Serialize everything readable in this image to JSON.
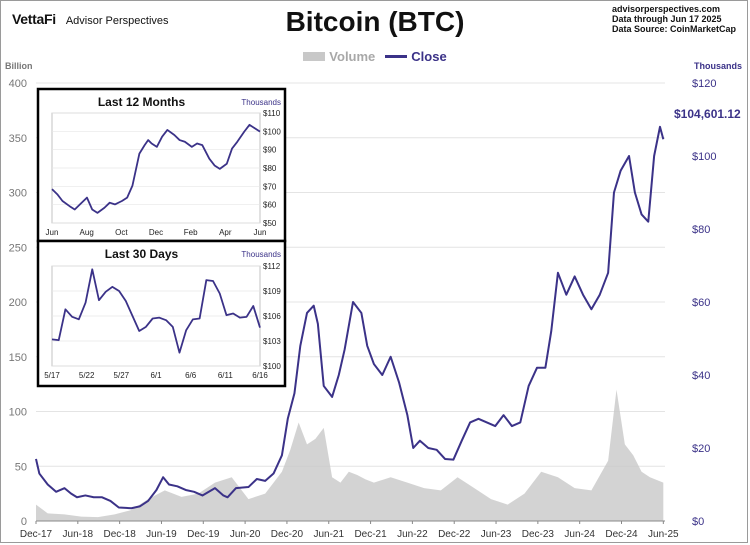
{
  "header": {
    "brand": "VettaFi",
    "brand_sub": "Advisor Perspectives",
    "title": "Bitcoin (BTC)",
    "source_lines": [
      "advisorperspectives.com",
      "Data through Jun 17 2025",
      "Data Source: CoinMarketCap"
    ]
  },
  "legend": {
    "volume_label": "Volume",
    "close_label": "Close"
  },
  "colors": {
    "close": "#3b3288",
    "volume": "#c8c8c8",
    "axis_left": "#777777",
    "grid": "#e4e4e4"
  },
  "chart_data": [
    {
      "type": "line",
      "title": "Bitcoin (BTC)",
      "left_axis_title": "Billion",
      "right_axis_title": "Thousands",
      "left_ticks": [
        0,
        50,
        100,
        150,
        200,
        250,
        300,
        350,
        400
      ],
      "right_ticks": [
        "$0",
        "$20",
        "$40",
        "$60",
        "$80",
        "$100",
        "$120"
      ],
      "ylim_left": [
        0,
        400
      ],
      "ylim_right": [
        0,
        120
      ],
      "x_ticks": [
        "Dec-17",
        "Jun-18",
        "Dec-18",
        "Jun-19",
        "Dec-19",
        "Jun-20",
        "Dec-20",
        "Jun-21",
        "Dec-21",
        "Jun-22",
        "Dec-22",
        "Jun-23",
        "Dec-23",
        "Jun-24",
        "Dec-24",
        "Jun-25"
      ],
      "grid": "horizontal",
      "last_value_label": "$104,601.12",
      "series": [
        {
          "name": "Close",
          "x": [
            2017.96,
            2018.0,
            2018.1,
            2018.2,
            2018.3,
            2018.38,
            2018.45,
            2018.55,
            2018.65,
            2018.75,
            2018.85,
            2018.95,
            2019.1,
            2019.2,
            2019.3,
            2019.4,
            2019.48,
            2019.55,
            2019.65,
            2019.75,
            2019.85,
            2019.95,
            2020.1,
            2020.2,
            2020.25,
            2020.35,
            2020.5,
            2020.6,
            2020.7,
            2020.8,
            2020.9,
            2020.97,
            2021.05,
            2021.12,
            2021.2,
            2021.28,
            2021.33,
            2021.4,
            2021.5,
            2021.58,
            2021.65,
            2021.75,
            2021.85,
            2021.92,
            2022.0,
            2022.1,
            2022.2,
            2022.3,
            2022.4,
            2022.47,
            2022.55,
            2022.65,
            2022.75,
            2022.85,
            2022.95,
            2023.05,
            2023.15,
            2023.25,
            2023.35,
            2023.45,
            2023.55,
            2023.65,
            2023.75,
            2023.85,
            2023.95,
            2024.05,
            2024.12,
            2024.2,
            2024.3,
            2024.4,
            2024.5,
            2024.6,
            2024.7,
            2024.8,
            2024.87,
            2024.95,
            2025.05,
            2025.12,
            2025.2,
            2025.28,
            2025.35,
            2025.42,
            2025.46
          ],
          "values": [
            17,
            13,
            10,
            8,
            9,
            7.5,
            6.5,
            7,
            6.5,
            6.5,
            5.5,
            3.7,
            3.5,
            4,
            5.5,
            8.5,
            12,
            10,
            9.5,
            8.5,
            8,
            7,
            9,
            7,
            6.5,
            9,
            9.3,
            11.5,
            11,
            13,
            18,
            28,
            35,
            48,
            57,
            59,
            54,
            37,
            34,
            40,
            47,
            60,
            57,
            48,
            43,
            40,
            45,
            38,
            29,
            20,
            22,
            20,
            19.5,
            17,
            16.8,
            22,
            27,
            28,
            27,
            26,
            29,
            26,
            27,
            37,
            42,
            42,
            52,
            68,
            62,
            67,
            62,
            58,
            62,
            68,
            90,
            96,
            100,
            90,
            84,
            82,
            100,
            108,
            104.6
          ]
        },
        {
          "name": "Volume",
          "x": [
            2017.96,
            2018.1,
            2018.3,
            2018.5,
            2018.7,
            2018.9,
            2019.1,
            2019.3,
            2019.5,
            2019.7,
            2019.9,
            2020.1,
            2020.3,
            2020.5,
            2020.7,
            2020.9,
            2021.0,
            2021.1,
            2021.2,
            2021.3,
            2021.4,
            2021.5,
            2021.6,
            2021.7,
            2021.8,
            2021.9,
            2022.0,
            2022.2,
            2022.4,
            2022.6,
            2022.8,
            2023.0,
            2023.2,
            2023.4,
            2023.6,
            2023.8,
            2024.0,
            2024.2,
            2024.4,
            2024.6,
            2024.8,
            2024.9,
            2025.0,
            2025.1,
            2025.2,
            2025.3,
            2025.46
          ],
          "values": [
            15,
            7,
            6,
            4,
            3.5,
            6,
            10,
            20,
            28,
            22,
            25,
            35,
            40,
            20,
            25,
            45,
            65,
            90,
            70,
            75,
            85,
            40,
            35,
            45,
            42,
            38,
            35,
            40,
            35,
            30,
            28,
            40,
            30,
            20,
            15,
            25,
            45,
            40,
            30,
            28,
            55,
            120,
            70,
            60,
            45,
            40,
            35
          ]
        }
      ]
    },
    {
      "type": "line",
      "title": "Last 12 Months",
      "units": "Thousands",
      "y_ticks": [
        "$110",
        "$100",
        "$90",
        "$80",
        "$70",
        "$60",
        "$50"
      ],
      "ylim": [
        50,
        115
      ],
      "x_ticks": [
        "Jun",
        "Aug",
        "Oct",
        "Dec",
        "Feb",
        "Apr",
        "Jun"
      ],
      "series": [
        {
          "name": "Close",
          "x": [
            0,
            0.3,
            0.6,
            1.0,
            1.3,
            1.6,
            2.0,
            2.3,
            2.6,
            3.0,
            3.3,
            3.6,
            4.0,
            4.3,
            4.6,
            5.0,
            5.3,
            5.5,
            5.7,
            6.0,
            6.3,
            6.6,
            7.0,
            7.3,
            7.6,
            8.0,
            8.3,
            8.6,
            9.0,
            9.3,
            9.6,
            10.0,
            10.3,
            10.6,
            11.0,
            11.3,
            11.6,
            11.9
          ],
          "values": [
            70,
            67,
            63,
            60,
            58,
            61,
            65,
            58,
            56,
            59,
            62,
            61,
            63,
            65,
            72,
            91,
            96,
            99,
            97,
            95,
            101,
            105,
            102,
            99,
            98,
            95,
            97,
            96,
            88,
            84,
            82,
            85,
            94,
            98,
            104,
            108,
            106,
            104
          ]
        }
      ]
    },
    {
      "type": "line",
      "title": "Last 30 Days",
      "units": "Thousands",
      "y_ticks": [
        "$112",
        "$109",
        "$106",
        "$103",
        "$100"
      ],
      "ylim": [
        100,
        112
      ],
      "x_ticks": [
        "5/17",
        "5/22",
        "5/27",
        "6/1",
        "6/6",
        "6/11",
        "6/16"
      ],
      "series": [
        {
          "name": "Close",
          "x": [
            0,
            1,
            2,
            3,
            4,
            5,
            6,
            7,
            8,
            9,
            10,
            11,
            12,
            13,
            14,
            15,
            16,
            17,
            18,
            19,
            20,
            21,
            22,
            23,
            24,
            25,
            26,
            27,
            28,
            29,
            30,
            31
          ],
          "values": [
            103.2,
            103.1,
            106.8,
            105.9,
            105.6,
            107.6,
            111.6,
            107.9,
            108.9,
            109.5,
            109,
            107.8,
            106.0,
            104.2,
            104.7,
            105.7,
            105.8,
            105.5,
            104.7,
            101.6,
            104.3,
            105.6,
            105.7,
            110.3,
            110.2,
            108.7,
            106.1,
            106.3,
            105.8,
            105.9,
            107.2,
            104.6
          ]
        }
      ]
    }
  ]
}
